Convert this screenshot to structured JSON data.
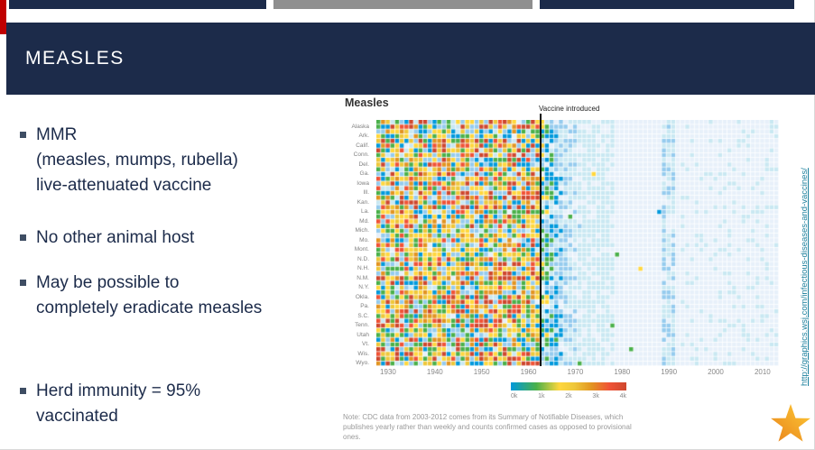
{
  "slide": {
    "title": "MEASLES",
    "bullets": [
      {
        "lines": [
          "MMR",
          "(measles, mumps, rubella)",
          "live-attenuated vaccine"
        ]
      },
      {
        "lines": [
          "No other animal host"
        ]
      },
      {
        "lines": [
          "May be possible to",
          "completely eradicate measles"
        ]
      },
      {
        "lines": [
          "Herd immunity = 95%",
          "vaccinated"
        ]
      }
    ],
    "source_url": "http://graphics.wsj.com/infectious-diseases-and-vaccines/"
  },
  "chart_data": {
    "type": "heatmap",
    "title": "Measles",
    "description": "Weekly reported measles case counts by U.S. state over time; colored cells encode case counts from 0k (light blue) to 4k (dark red). Cells are dense with green/yellow/orange values before 1963 and fade to pale blue after the vaccine is introduced.",
    "annotation": "Vaccine introduced",
    "vaccine_year": 1963,
    "x_range": [
      1928,
      2013
    ],
    "x_ticks": [
      "1930",
      "1940",
      "1950",
      "1960",
      "1970",
      "1980",
      "1990",
      "2000",
      "2010"
    ],
    "row_labels": [
      "Alaska",
      "Ark.",
      "Calif.",
      "Conn.",
      "Del.",
      "Ga.",
      "Iowa",
      "Ill.",
      "Kan.",
      "La.",
      "Md.",
      "Mich.",
      "Mo.",
      "Mont.",
      "N.D.",
      "N.H.",
      "N.M.",
      "N.Y.",
      "Okla.",
      "Pa.",
      "S.C.",
      "Tenn.",
      "Utah",
      "Vt.",
      "Wis.",
      "Wyo."
    ],
    "rows_per_label": 2,
    "legend_labels": [
      "0k",
      "1k",
      "2k",
      "3k",
      "4k"
    ],
    "color_scale": [
      "#e7f0fa",
      "#c9e8f2",
      "#95cbee",
      "#0099dc",
      "#4ab04a",
      "#ffd73e",
      "#eec73a",
      "#e29421",
      "#f05336",
      "#ce472e"
    ],
    "note_lines": [
      "Note: CDC data from 2003-2012 comes from its Summary of Notifiable Diseases, which",
      "publishes yearly rather than weekly and counts confirmed cases as opposed to provisional",
      "ones."
    ]
  },
  "colors": {
    "header_navy": "#1c2b4a",
    "accent_red": "#c00000",
    "bar_gray": "#8f8f8f",
    "text_navy": "#1c2b4a",
    "link_teal": "#1a7f9c",
    "star_orange": "#f5a51d"
  }
}
